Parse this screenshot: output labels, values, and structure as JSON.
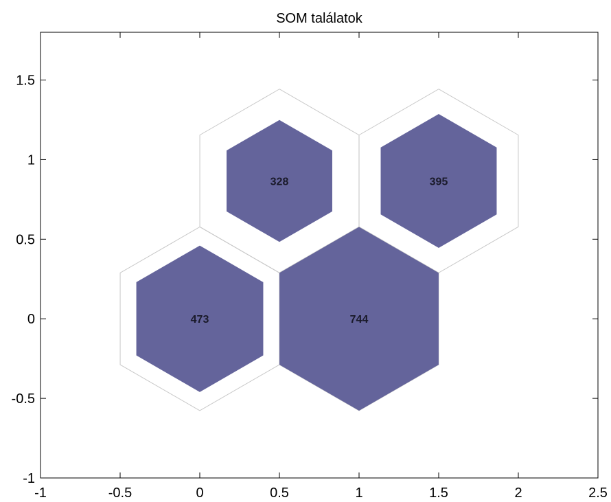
{
  "chart_data": {
    "type": "hexagon-hits",
    "title": "SOM találatok",
    "xlim": [
      -1,
      2.5
    ],
    "ylim": [
      -1,
      1.8
    ],
    "x_ticks": [
      -1,
      -0.5,
      0,
      0.5,
      1,
      1.5,
      2,
      2.5
    ],
    "x_tick_labels": [
      "-1",
      "-0.5",
      "0",
      "0.5",
      "1",
      "1.5",
      "2",
      "2.5"
    ],
    "y_ticks": [
      -1,
      -0.5,
      0,
      0.5,
      1,
      1.5
    ],
    "y_tick_labels": [
      "-1",
      "-0.5",
      "0",
      "0.5",
      "1",
      "1.5"
    ],
    "grid": false,
    "neuron_radius": 0.577,
    "neurons": [
      {
        "x": 0,
        "y": 0,
        "hits": 473,
        "label": "473"
      },
      {
        "x": 1,
        "y": 0,
        "hits": 744,
        "label": "744"
      },
      {
        "x": 0.5,
        "y": 0.866,
        "hits": 328,
        "label": "328"
      },
      {
        "x": 1.5,
        "y": 0.866,
        "hits": 395,
        "label": "395"
      }
    ],
    "colors": {
      "fill": "#64649b",
      "outline": "#c8c8c8",
      "axes": "#000000",
      "label": "#1a1a2a"
    }
  }
}
